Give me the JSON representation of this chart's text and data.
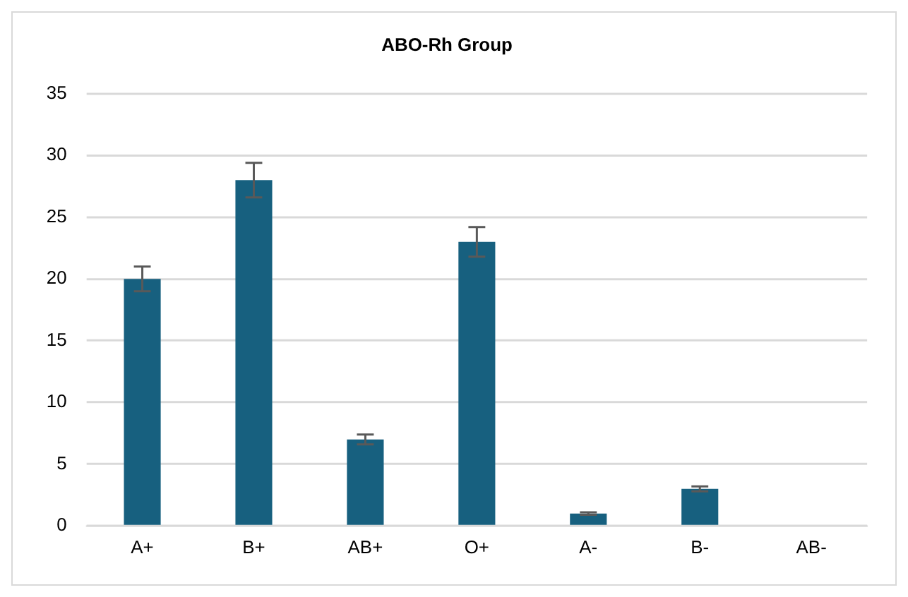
{
  "chart_data": {
    "type": "bar",
    "title": "ABO-Rh Group",
    "categories": [
      "A+",
      "B+",
      "AB+",
      "O+",
      "A-",
      "B-",
      "AB-"
    ],
    "values": [
      20,
      28,
      7,
      23,
      1,
      3,
      0
    ],
    "errors": [
      1,
      1.4,
      0.4,
      1.2,
      0.1,
      0.2,
      null
    ],
    "color": "#17607f",
    "ylim": [
      0,
      35
    ],
    "yticks": [
      0,
      5,
      10,
      15,
      20,
      25,
      30,
      35
    ],
    "grid": "y"
  }
}
